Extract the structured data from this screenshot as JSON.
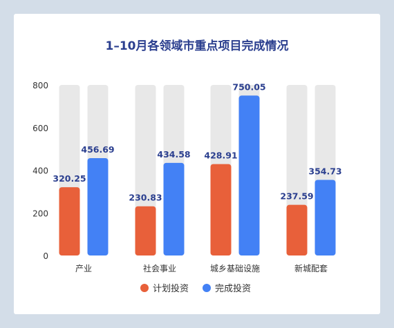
{
  "chart_data": {
    "type": "bar",
    "title": "1–10月各领域市重点项目完成情况",
    "categories": [
      "产业",
      "社会事业",
      "城乡基础设施",
      "新城配套"
    ],
    "series": [
      {
        "name": "计划投资",
        "values": [
          320.25,
          230.83,
          428.91,
          237.59
        ],
        "color": "#e8603a"
      },
      {
        "name": "完成投资",
        "values": [
          456.69,
          434.58,
          750.05,
          354.73
        ],
        "color": "#4381f5"
      }
    ],
    "yticks": [
      0,
      200,
      400,
      600,
      800
    ],
    "ylim": [
      0,
      800
    ],
    "grid": false,
    "background_track_color": "#e8e8e8",
    "label_color": "#2b3f8f",
    "legend_position": "bottom"
  }
}
